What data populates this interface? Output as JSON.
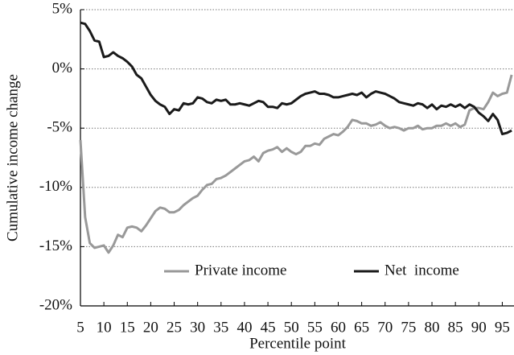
{
  "chart_data": {
    "type": "line",
    "x_label": "Percentile point",
    "y_label": "Cumulative income change",
    "x": [
      5,
      6,
      7,
      8,
      9,
      10,
      11,
      12,
      13,
      14,
      15,
      16,
      17,
      18,
      19,
      20,
      21,
      22,
      23,
      24,
      25,
      26,
      27,
      28,
      29,
      30,
      31,
      32,
      33,
      34,
      35,
      36,
      37,
      38,
      39,
      40,
      41,
      42,
      43,
      44,
      45,
      46,
      47,
      48,
      49,
      50,
      51,
      52,
      53,
      54,
      55,
      56,
      57,
      58,
      59,
      60,
      61,
      62,
      63,
      64,
      65,
      66,
      67,
      68,
      69,
      70,
      71,
      72,
      73,
      74,
      75,
      76,
      77,
      78,
      79,
      80,
      81,
      82,
      83,
      84,
      85,
      86,
      87,
      88,
      89,
      90,
      91,
      92,
      93,
      94,
      95,
      96,
      97
    ],
    "series": [
      {
        "name": "Private income",
        "color": "#999999",
        "values": [
          -6.0,
          -12.5,
          -14.7,
          -15.1,
          -15.0,
          -14.9,
          -15.5,
          -14.9,
          -14.0,
          -14.2,
          -13.4,
          -13.3,
          -13.4,
          -13.7,
          -13.2,
          -12.6,
          -12.0,
          -11.7,
          -11.8,
          -12.1,
          -12.1,
          -11.9,
          -11.5,
          -11.2,
          -10.9,
          -10.7,
          -10.2,
          -9.8,
          -9.7,
          -9.3,
          -9.2,
          -9.0,
          -8.7,
          -8.4,
          -8.1,
          -7.8,
          -7.7,
          -7.4,
          -7.8,
          -7.1,
          -6.9,
          -6.8,
          -6.6,
          -7.0,
          -6.7,
          -7.0,
          -7.2,
          -7.0,
          -6.5,
          -6.5,
          -6.3,
          -6.4,
          -5.9,
          -5.7,
          -5.5,
          -5.6,
          -5.3,
          -4.9,
          -4.3,
          -4.4,
          -4.6,
          -4.6,
          -4.8,
          -4.7,
          -4.5,
          -4.8,
          -5.0,
          -4.9,
          -5.0,
          -5.2,
          -5.0,
          -5.0,
          -4.8,
          -5.1,
          -5.0,
          -5.0,
          -4.8,
          -4.8,
          -4.6,
          -4.8,
          -4.6,
          -4.9,
          -4.7,
          -3.5,
          -3.3,
          -3.3,
          -3.4,
          -2.8,
          -2.0,
          -2.3,
          -2.1,
          -2.0,
          -0.5
        ]
      },
      {
        "name": "Net  income",
        "color": "#1a1a1a",
        "values": [
          3.9,
          3.8,
          3.2,
          2.4,
          2.3,
          1.0,
          1.1,
          1.4,
          1.1,
          0.9,
          0.6,
          0.2,
          -0.5,
          -0.8,
          -1.5,
          -2.2,
          -2.7,
          -3.0,
          -3.2,
          -3.8,
          -3.4,
          -3.5,
          -2.9,
          -3.0,
          -2.9,
          -2.4,
          -2.5,
          -2.8,
          -2.9,
          -2.6,
          -2.7,
          -2.6,
          -3.0,
          -3.0,
          -2.9,
          -3.0,
          -3.1,
          -2.9,
          -2.7,
          -2.8,
          -3.2,
          -3.2,
          -3.3,
          -2.9,
          -3.0,
          -2.9,
          -2.6,
          -2.3,
          -2.1,
          -2.0,
          -1.9,
          -2.1,
          -2.1,
          -2.2,
          -2.4,
          -2.4,
          -2.3,
          -2.2,
          -2.1,
          -2.2,
          -2.0,
          -2.4,
          -2.1,
          -1.9,
          -2.0,
          -2.1,
          -2.3,
          -2.5,
          -2.8,
          -2.9,
          -3.0,
          -3.1,
          -2.9,
          -3.0,
          -3.3,
          -3.0,
          -3.4,
          -3.1,
          -3.2,
          -3.0,
          -3.2,
          -3.0,
          -3.3,
          -3.0,
          -3.2,
          -3.7,
          -4.0,
          -4.4,
          -3.8,
          -4.3,
          -5.5,
          -5.4,
          -5.2
        ]
      }
    ],
    "xlim": [
      5,
      97.5
    ],
    "xticks": [
      5,
      10,
      15,
      20,
      25,
      30,
      35,
      40,
      45,
      50,
      55,
      60,
      65,
      70,
      75,
      80,
      85,
      90,
      95
    ],
    "ylim": [
      -20,
      5
    ],
    "yticks": [
      {
        "value": 5,
        "label": "5%"
      },
      {
        "value": 0,
        "label": "0%"
      },
      {
        "value": -5,
        "label": "-5%"
      },
      {
        "value": -10,
        "label": "-10%"
      },
      {
        "value": -15,
        "label": "-15%"
      },
      {
        "value": -20,
        "label": "-20%"
      }
    ],
    "grid": true,
    "legend": "lower center"
  }
}
